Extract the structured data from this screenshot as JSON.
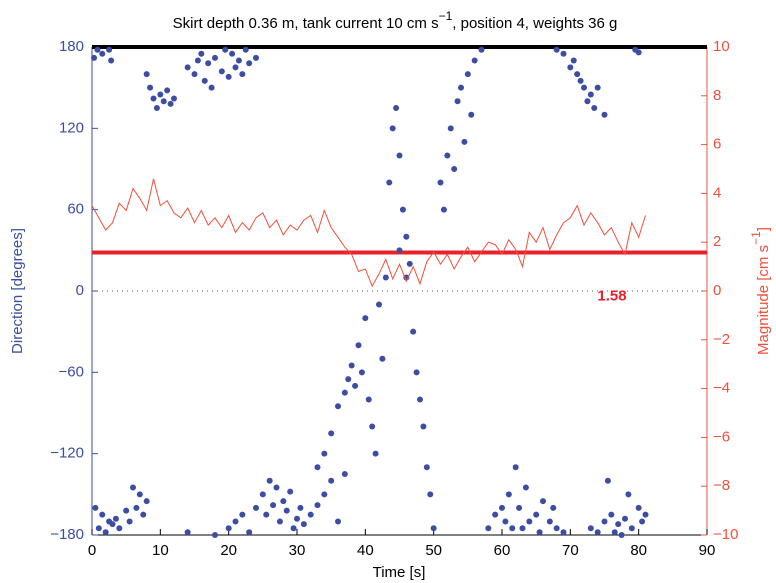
{
  "chart_data": {
    "type": "scatter",
    "title": [
      "Skirt depth 0.36 m, tank current 10 cm s",
      "−1",
      ", position 4, weights 36 g"
    ],
    "x_label": "Time [s]",
    "y_label": "Direction [degrees]",
    "y2_label": [
      "Magnitude [cm s",
      "−1",
      "]"
    ],
    "xlim": [
      0,
      90
    ],
    "xticks": [
      0,
      10,
      20,
      30,
      40,
      50,
      60,
      70,
      80,
      90
    ],
    "ylim": [
      -180,
      180
    ],
    "yticks": [
      {
        "value": -180,
        "label": "−180"
      },
      {
        "value": -120,
        "label": "−120"
      },
      {
        "value": -60,
        "label": "−60"
      },
      0,
      60,
      120,
      180
    ],
    "y2lim": [
      -10,
      10
    ],
    "y2ticks": [
      {
        "value": -10,
        "label": "−10"
      },
      {
        "value": -8,
        "label": "−8"
      },
      {
        "value": -6,
        "label": "−6"
      },
      {
        "value": -4,
        "label": "−4"
      },
      {
        "value": -2,
        "label": "−2"
      },
      0,
      2,
      4,
      6,
      8,
      10
    ],
    "y_color": "#3b4ea3",
    "y2_color": "#f0503c",
    "series": [
      {
        "type": "scatter",
        "color": "#3b4ea3",
        "x": [
          0.3,
          0.8,
          1.5,
          2.5,
          2.8,
          8,
          8.5,
          9,
          9.5,
          10,
          10.5,
          11,
          11.5,
          12,
          14,
          15,
          15.5,
          16,
          16.5,
          17,
          17.5,
          18,
          19,
          19.5,
          20,
          20.5,
          21,
          21.5,
          22,
          22.5,
          23,
          24,
          0.5,
          1,
          1.5,
          2,
          2.5,
          3,
          3.5,
          4,
          5,
          5.5,
          6,
          6.5,
          7,
          7.5,
          8,
          14,
          18,
          20,
          21,
          22,
          23,
          24,
          25,
          25.5,
          26,
          26.5,
          27,
          27.5,
          28,
          28.5,
          29,
          29.5,
          30,
          30.5,
          31,
          32,
          33,
          34,
          35,
          36,
          37,
          33,
          34,
          35,
          36,
          37,
          37.5,
          38,
          38.5,
          39,
          39.5,
          40,
          40.5,
          41,
          41.5,
          42,
          42.5,
          43,
          43.5,
          44,
          44.5,
          45,
          45.5,
          46,
          46.5,
          45,
          46,
          47,
          47.5,
          48,
          48.5,
          49,
          49.5,
          50,
          51,
          51.5,
          52,
          52.5,
          53,
          53.5,
          54,
          54.5,
          55,
          55.5,
          56,
          57,
          58,
          59,
          60,
          60.5,
          61,
          61.5,
          62,
          62.5,
          63,
          63.5,
          64,
          65,
          65.5,
          66,
          67,
          67.5,
          68,
          69,
          68,
          69,
          70,
          70.5,
          71,
          71.5,
          72,
          72.5,
          73,
          73.5,
          74,
          75,
          73,
          74,
          75,
          75.5,
          76,
          76.5,
          77,
          77.5,
          78,
          78.5,
          79,
          80,
          80.5,
          81,
          79.5,
          80
        ],
        "values": [
          172,
          178,
          175,
          178,
          170,
          160,
          150,
          142,
          135,
          145,
          140,
          148,
          138,
          142,
          165,
          160,
          170,
          175,
          155,
          168,
          150,
          172,
          162,
          178,
          158,
          175,
          165,
          170,
          160,
          178,
          168,
          172,
          -160,
          -175,
          -165,
          -178,
          -170,
          -172,
          -168,
          -175,
          -162,
          -170,
          -145,
          -160,
          -150,
          -165,
          -155,
          -178,
          -180,
          -175,
          -170,
          -165,
          -178,
          -160,
          -150,
          -165,
          -140,
          -158,
          -145,
          -170,
          -155,
          -162,
          -148,
          -175,
          -168,
          -160,
          -172,
          -165,
          -158,
          -150,
          -140,
          -170,
          -135,
          -130,
          -120,
          -105,
          -85,
          -75,
          -65,
          -55,
          -70,
          -40,
          -60,
          -20,
          -80,
          -100,
          -120,
          -10,
          -50,
          10,
          80,
          120,
          135,
          100,
          60,
          40,
          20,
          30,
          10,
          -30,
          -60,
          -80,
          -100,
          -130,
          -150,
          -175,
          80,
          60,
          100,
          120,
          90,
          140,
          150,
          110,
          160,
          130,
          170,
          178,
          -175,
          -165,
          -160,
          -170,
          -150,
          -175,
          -130,
          -160,
          -175,
          -145,
          -170,
          -165,
          -178,
          -155,
          -170,
          -160,
          -175,
          -178,
          178,
          175,
          165,
          170,
          160,
          155,
          150,
          140,
          145,
          135,
          150,
          130,
          -175,
          -178,
          -170,
          -140,
          -165,
          -178,
          -172,
          -180,
          -168,
          -150,
          -175,
          -160,
          -170,
          -165,
          178,
          176
        ]
      },
      {
        "type": "line",
        "axis": "y2",
        "color": "#f0503c",
        "x": [
          0,
          1,
          2,
          3,
          4,
          5,
          6,
          7,
          8,
          9,
          10,
          11,
          12,
          13,
          14,
          15,
          16,
          17,
          18,
          19,
          20,
          21,
          22,
          23,
          24,
          25,
          26,
          27,
          28,
          29,
          30,
          31,
          32,
          33,
          34,
          35,
          36,
          37,
          38,
          39,
          40,
          41,
          42,
          43,
          44,
          45,
          46,
          47,
          48,
          49,
          50,
          51,
          52,
          53,
          54,
          55,
          56,
          57,
          58,
          59,
          60,
          61,
          62,
          63,
          64,
          65,
          66,
          67,
          68,
          69,
          70,
          71,
          72,
          73,
          74,
          75,
          76,
          77,
          78,
          79,
          80,
          81
        ],
        "values": [
          3.5,
          3.0,
          2.5,
          2.8,
          3.6,
          3.3,
          4.2,
          3.8,
          3.3,
          4.6,
          3.5,
          3.7,
          3.2,
          3.0,
          3.4,
          2.8,
          3.3,
          2.7,
          3.0,
          2.6,
          3.1,
          2.4,
          2.8,
          2.5,
          3.0,
          3.2,
          2.6,
          2.9,
          2.3,
          2.7,
          2.5,
          2.9,
          3.1,
          2.4,
          3.3,
          2.6,
          2.2,
          1.8,
          1.5,
          0.8,
          0.9,
          0.2,
          0.7,
          1.3,
          0.5,
          1.1,
          0.4,
          1.0,
          0.3,
          1.2,
          1.6,
          1.1,
          1.5,
          0.9,
          1.4,
          1.8,
          1.2,
          1.6,
          2.0,
          1.9,
          1.5,
          2.1,
          1.7,
          1.0,
          2.4,
          2.0,
          2.6,
          1.7,
          2.3,
          2.8,
          3.0,
          3.5,
          2.7,
          3.2,
          2.8,
          2.3,
          2.6,
          2.0,
          1.5,
          2.8,
          2.2,
          3.1
        ]
      }
    ],
    "reference_lines": [
      {
        "axis": "y",
        "value": 0,
        "color": "#555555",
        "style": "dotted"
      },
      {
        "axis": "y",
        "value": 180,
        "color": "#000000",
        "style": "solid"
      },
      {
        "axis": "y2",
        "value": 1.58,
        "color": "#e8222a",
        "style": "solid",
        "label": "1.58"
      }
    ]
  }
}
